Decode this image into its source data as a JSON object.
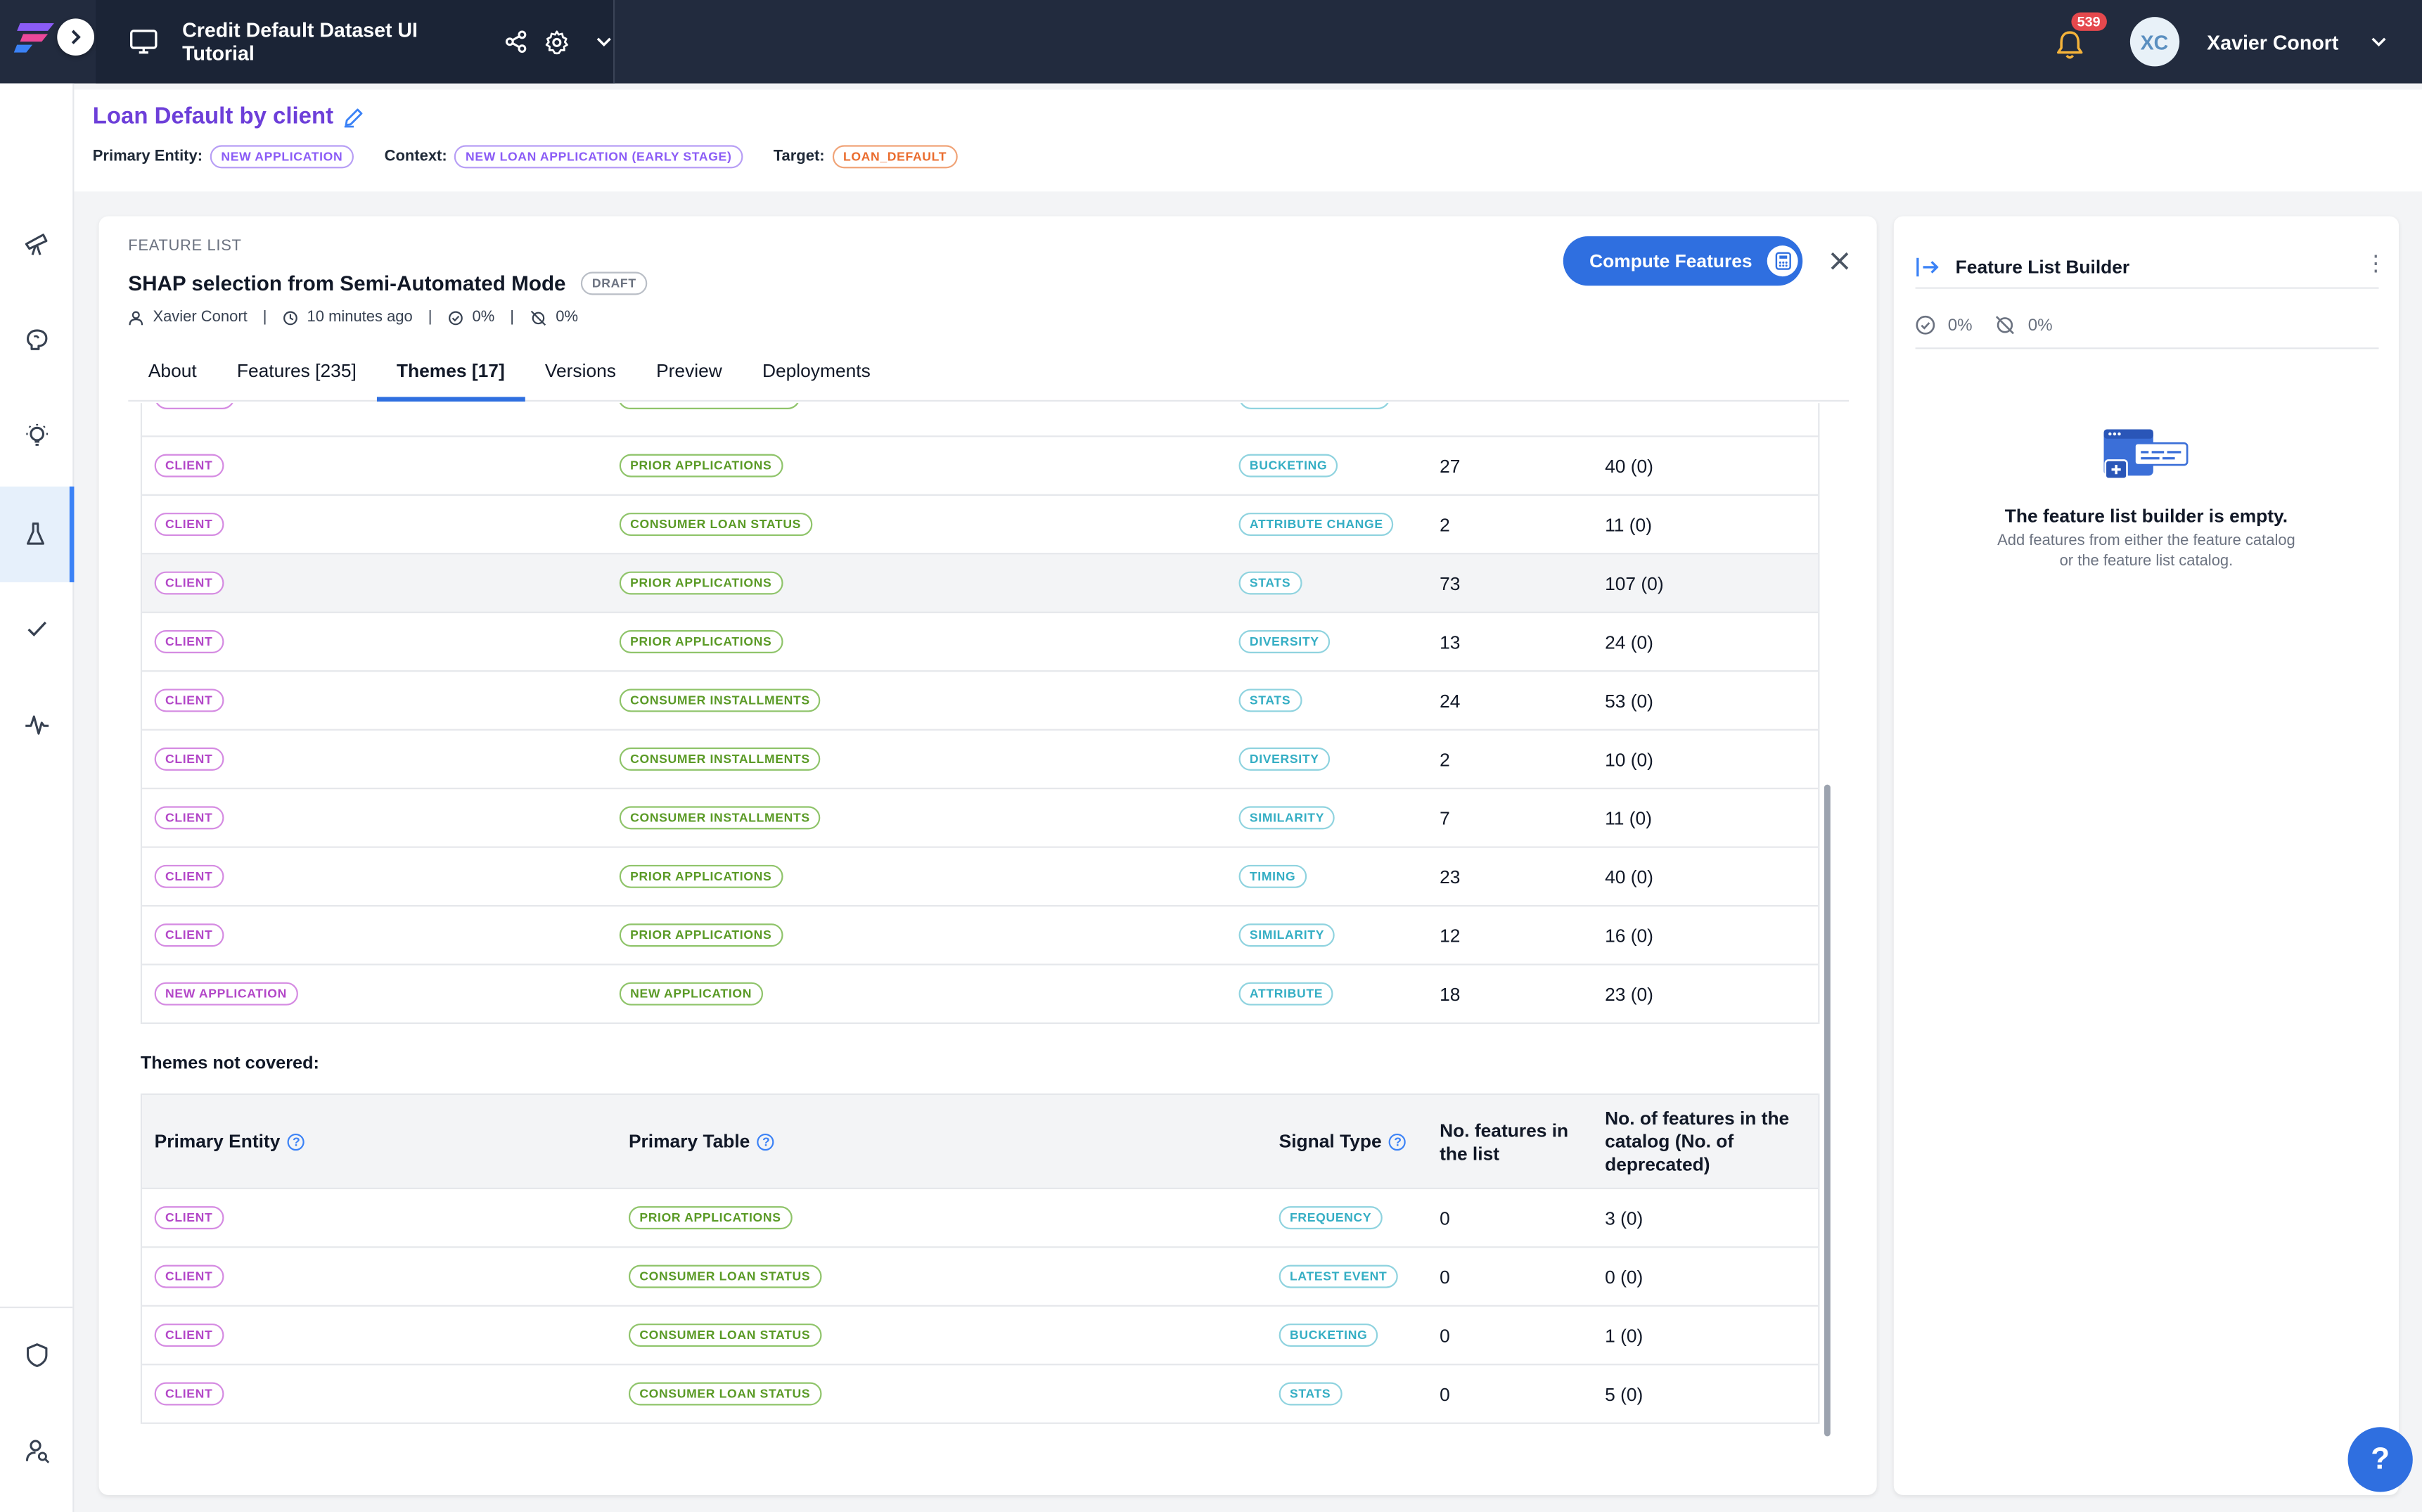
{
  "topbar": {
    "project_title": "Credit Default Dataset UI Tutorial",
    "notification_count": "539",
    "user_initials": "XC",
    "user_name": "Xavier Conort"
  },
  "header": {
    "title": "Loan Default by client",
    "primary_entity_label": "Primary Entity:",
    "primary_entity": "NEW APPLICATION",
    "context_label": "Context:",
    "context": "NEW LOAN APPLICATION (EARLY STAGE)",
    "target_label": "Target:",
    "target": "LOAN_DEFAULT"
  },
  "feature_list": {
    "section_label": "FEATURE LIST",
    "name": "SHAP selection from Semi-Automated Mode",
    "status": "DRAFT",
    "owner": "Xavier Conort",
    "updated": "10 minutes ago",
    "online_pct": "0%",
    "offline_pct": "0%",
    "compute_label": "Compute Features",
    "tabs": [
      "About",
      "Features [235]",
      "Themes [17]",
      "Versions",
      "Preview",
      "Deployments"
    ],
    "active_tab": "Themes [17]"
  },
  "covered": {
    "rows": [
      {
        "entity": "CLIENT",
        "table": "PRIOR APPLICATIONS",
        "signal": "BUCKETING",
        "in_list": "27",
        "in_catalog": "40 (0)"
      },
      {
        "entity": "CLIENT",
        "table": "CONSUMER LOAN STATUS",
        "signal": "ATTRIBUTE CHANGE",
        "in_list": "2",
        "in_catalog": "11 (0)"
      },
      {
        "entity": "CLIENT",
        "table": "PRIOR APPLICATIONS",
        "signal": "STATS",
        "in_list": "73",
        "in_catalog": "107 (0)"
      },
      {
        "entity": "CLIENT",
        "table": "PRIOR APPLICATIONS",
        "signal": "DIVERSITY",
        "in_list": "13",
        "in_catalog": "24 (0)"
      },
      {
        "entity": "CLIENT",
        "table": "CONSUMER INSTALLMENTS",
        "signal": "STATS",
        "in_list": "24",
        "in_catalog": "53 (0)"
      },
      {
        "entity": "CLIENT",
        "table": "CONSUMER INSTALLMENTS",
        "signal": "DIVERSITY",
        "in_list": "2",
        "in_catalog": "10 (0)"
      },
      {
        "entity": "CLIENT",
        "table": "CONSUMER INSTALLMENTS",
        "signal": "SIMILARITY",
        "in_list": "7",
        "in_catalog": "11 (0)"
      },
      {
        "entity": "CLIENT",
        "table": "PRIOR APPLICATIONS",
        "signal": "TIMING",
        "in_list": "23",
        "in_catalog": "40 (0)"
      },
      {
        "entity": "CLIENT",
        "table": "PRIOR APPLICATIONS",
        "signal": "SIMILARITY",
        "in_list": "12",
        "in_catalog": "16 (0)"
      },
      {
        "entity": "NEW APPLICATION",
        "table": "NEW APPLICATION",
        "signal": "ATTRIBUTE",
        "in_list": "18",
        "in_catalog": "23 (0)"
      }
    ]
  },
  "not_covered": {
    "title": "Themes not covered:",
    "columns": {
      "entity": "Primary Entity",
      "table": "Primary Table",
      "signal": "Signal Type",
      "in_list": "No. features in the list",
      "in_catalog": "No. of features in the catalog (No. of deprecated)"
    },
    "rows": [
      {
        "entity": "CLIENT",
        "table": "PRIOR APPLICATIONS",
        "signal": "FREQUENCY",
        "in_list": "0",
        "in_catalog": "3 (0)"
      },
      {
        "entity": "CLIENT",
        "table": "CONSUMER LOAN STATUS",
        "signal": "LATEST EVENT",
        "in_list": "0",
        "in_catalog": "0 (0)"
      },
      {
        "entity": "CLIENT",
        "table": "CONSUMER LOAN STATUS",
        "signal": "BUCKETING",
        "in_list": "0",
        "in_catalog": "1 (0)"
      },
      {
        "entity": "CLIENT",
        "table": "CONSUMER LOAN STATUS",
        "signal": "STATS",
        "in_list": "0",
        "in_catalog": "5 (0)"
      }
    ]
  },
  "builder": {
    "title": "Feature List Builder",
    "online_pct": "0%",
    "offline_pct": "0%",
    "empty_title": "The feature list builder is empty.",
    "empty_line1": "Add features from either the feature catalog",
    "empty_line2": "or the feature list catalog."
  },
  "help_label": "?",
  "icons": [
    "logo-icon",
    "chevron-right-icon",
    "monitor-icon",
    "share-icon",
    "gear-icon",
    "chevron-down-icon",
    "bell-icon",
    "telescope-icon",
    "brain-icon",
    "bulb-icon",
    "flask-icon",
    "check-icon",
    "pulse-icon",
    "shield-icon",
    "user-search-icon",
    "edit-icon",
    "user-icon",
    "clock-icon",
    "check-circle-icon",
    "offline-icon",
    "calculator-icon",
    "close-icon",
    "collapse-icon",
    "kebab-icon",
    "help-circle-icon"
  ],
  "colors": {
    "topbar": "#222b3e",
    "accent": "#2f6fe0",
    "title": "#6d3fd9",
    "entity": "#b347c8",
    "table": "#5a9a26",
    "signal": "#35aec4"
  }
}
